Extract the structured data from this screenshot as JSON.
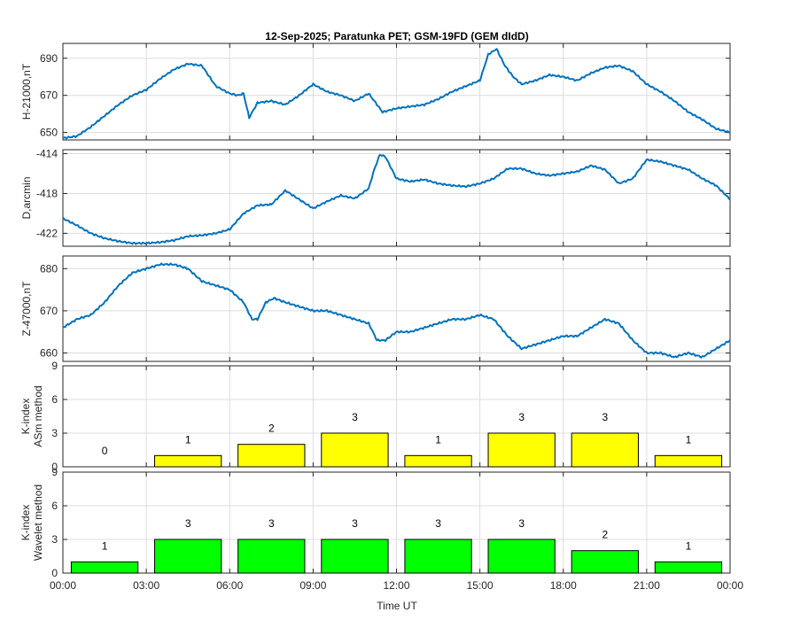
{
  "title": "12-Sep-2025; Paratunka PET; GSM-19FD (GEM dIdD)",
  "xlabel": "Time UT",
  "x_ticks": [
    "00:00",
    "03:00",
    "06:00",
    "09:00",
    "12:00",
    "15:00",
    "18:00",
    "21:00",
    "00:00"
  ],
  "chart_data": [
    {
      "type": "line",
      "ylabel": "H-21000,nT",
      "xlim": [
        0,
        24
      ],
      "ylim": [
        646,
        698
      ],
      "yticks": [
        650,
        670,
        690
      ],
      "color": "#0072bd",
      "x": [
        0,
        0.5,
        1,
        1.5,
        2,
        2.5,
        3,
        3.5,
        4,
        4.5,
        5,
        5.5,
        6,
        6.3,
        6.5,
        6.7,
        7,
        7.5,
        8,
        8.5,
        9,
        9.5,
        10,
        10.5,
        11,
        11.5,
        12,
        12.5,
        13,
        13.5,
        14,
        14.5,
        15,
        15.3,
        15.6,
        15.9,
        16.2,
        16.5,
        17,
        17.5,
        18,
        18.5,
        19,
        19.5,
        20,
        20.5,
        21,
        21.5,
        22,
        22.5,
        23,
        23.5,
        24
      ],
      "y": [
        647,
        648,
        653,
        659,
        665,
        670,
        673,
        679,
        684,
        687,
        686,
        675,
        671,
        670,
        671,
        658,
        666,
        667,
        665,
        670,
        676,
        672,
        670,
        667,
        671,
        661,
        663,
        664,
        665,
        668,
        672,
        675,
        678,
        692,
        695,
        686,
        680,
        676,
        678,
        681,
        680,
        678,
        682,
        685,
        686,
        683,
        676,
        672,
        667,
        661,
        657,
        652,
        650
      ]
    },
    {
      "type": "line",
      "ylabel": "D,arcmin",
      "xlim": [
        0,
        24
      ],
      "ylim": [
        -423.3,
        -413.6
      ],
      "yticks": [
        -422,
        -418,
        -414
      ],
      "color": "#0072bd",
      "x": [
        0,
        0.5,
        1,
        1.5,
        2,
        2.5,
        3,
        3.5,
        4,
        4.5,
        5,
        5.5,
        6,
        6.5,
        7,
        7.5,
        8,
        8.5,
        9,
        9.5,
        10,
        10.5,
        11,
        11.2,
        11.4,
        11.6,
        12,
        12.5,
        13,
        13.5,
        14,
        14.5,
        15,
        15.5,
        16,
        16.5,
        17,
        17.5,
        18,
        18.5,
        19,
        19.5,
        20,
        20.5,
        21,
        21.5,
        22,
        22.5,
        23,
        23.5,
        24
      ],
      "y": [
        -420.5,
        -421.2,
        -422.0,
        -422.5,
        -422.8,
        -423.0,
        -423.0,
        -422.9,
        -422.7,
        -422.3,
        -422.2,
        -422.0,
        -421.6,
        -420.0,
        -419.2,
        -419.1,
        -417.7,
        -418.6,
        -419.5,
        -418.8,
        -418.2,
        -418.5,
        -417.5,
        -415.6,
        -414.1,
        -414.3,
        -416.5,
        -416.8,
        -416.6,
        -417.0,
        -417.2,
        -417.3,
        -417.0,
        -416.5,
        -415.5,
        -415.5,
        -416.0,
        -416.2,
        -416.0,
        -415.8,
        -415.2,
        -415.6,
        -417.0,
        -416.5,
        -414.6,
        -414.8,
        -415.2,
        -415.6,
        -416.5,
        -417.2,
        -418.6
      ]
    },
    {
      "type": "line",
      "ylabel": "Z-47000,nT",
      "xlim": [
        0,
        24
      ],
      "ylim": [
        658,
        683
      ],
      "yticks": [
        660,
        670,
        680
      ],
      "color": "#0072bd",
      "x": [
        0,
        0.5,
        1,
        1.5,
        2,
        2.5,
        3,
        3.5,
        4,
        4.5,
        5,
        5.5,
        6,
        6.5,
        6.8,
        7,
        7.3,
        7.6,
        8,
        8.5,
        9,
        9.5,
        10,
        10.5,
        11,
        11.3,
        11.6,
        12,
        12.5,
        13,
        13.5,
        14,
        14.5,
        15,
        15.5,
        16,
        16.5,
        17,
        17.5,
        18,
        18.5,
        19,
        19.5,
        20,
        20.5,
        21,
        21.5,
        22,
        22.5,
        23,
        23.5,
        24
      ],
      "y": [
        666,
        668,
        669,
        672,
        676,
        679,
        680,
        681,
        681,
        680,
        677,
        676,
        675,
        672,
        668,
        668,
        672,
        673,
        672,
        671,
        670,
        670,
        669,
        668,
        667,
        663,
        663,
        665,
        665,
        666,
        667,
        668,
        668,
        669,
        668,
        664,
        661,
        662,
        663,
        664,
        664,
        666,
        668,
        667,
        663,
        660,
        660,
        659,
        660,
        659,
        661,
        663
      ]
    },
    {
      "type": "bar",
      "ylabel": "K-index ASm method",
      "ylabel_lines": [
        "K-index",
        "ASm method"
      ],
      "categories": [
        "00:00-03:00",
        "03:00-06:00",
        "06:00-09:00",
        "09:00-12:00",
        "12:00-15:00",
        "15:00-18:00",
        "18:00-21:00",
        "21:00-00:00"
      ],
      "values": [
        0,
        1,
        2,
        3,
        1,
        3,
        3,
        1
      ],
      "value_labels": [
        "0",
        "1",
        "2",
        "3",
        "1",
        "3",
        "3",
        "1"
      ],
      "ylim": [
        0,
        9
      ],
      "yticks": [
        0,
        3,
        6,
        9
      ],
      "color": "#ffff00"
    },
    {
      "type": "bar",
      "ylabel": "K-index Wavelet method",
      "ylabel_lines": [
        "K-index",
        "Wavelet method"
      ],
      "categories": [
        "00:00-03:00",
        "03:00-06:00",
        "06:00-09:00",
        "09:00-12:00",
        "12:00-15:00",
        "15:00-18:00",
        "18:00-21:00",
        "21:00-00:00"
      ],
      "values": [
        1,
        3,
        3,
        3,
        3,
        3,
        2,
        1
      ],
      "value_labels": [
        "1",
        "3",
        "3",
        "3",
        "3",
        "3",
        "2",
        "1"
      ],
      "ylim": [
        0,
        9
      ],
      "yticks": [
        0,
        3,
        6,
        9
      ],
      "color": "#00ff00"
    }
  ]
}
